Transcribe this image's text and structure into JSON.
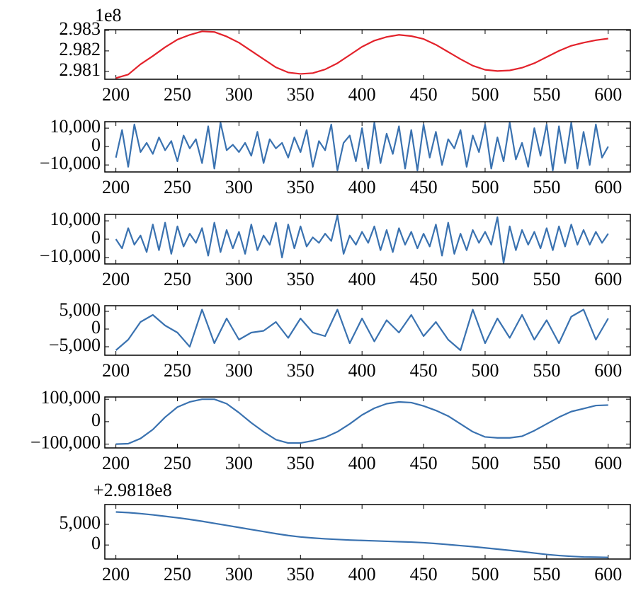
{
  "chart_data": [
    {
      "type": "line",
      "annotation": "1e8",
      "xlim": [
        191,
        618
      ],
      "xticks": [
        200,
        250,
        300,
        350,
        400,
        450,
        500,
        550,
        600
      ],
      "ylim": [
        2.98062,
        2.98303
      ],
      "yticks": [
        2.981,
        2.982,
        2.983
      ],
      "x": [
        200,
        210,
        220,
        230,
        240,
        250,
        260,
        270,
        280,
        290,
        300,
        310,
        320,
        330,
        340,
        350,
        360,
        370,
        380,
        390,
        400,
        410,
        420,
        430,
        440,
        450,
        460,
        470,
        480,
        490,
        500,
        510,
        520,
        530,
        540,
        550,
        560,
        570,
        580,
        590,
        600
      ],
      "series": [
        {
          "color": "#e3222b",
          "values": [
            2.98068,
            2.98085,
            2.98135,
            2.98175,
            2.98218,
            2.98255,
            2.98278,
            2.98295,
            2.98292,
            2.9827,
            2.9824,
            2.982,
            2.9816,
            2.9812,
            2.98095,
            2.98088,
            2.98092,
            2.9811,
            2.9814,
            2.9818,
            2.9822,
            2.9825,
            2.98268,
            2.98278,
            2.98272,
            2.98258,
            2.9823,
            2.98195,
            2.9816,
            2.98128,
            2.98108,
            2.98102,
            2.98105,
            2.98118,
            2.9814,
            2.9817,
            2.982,
            2.98225,
            2.9824,
            2.98252,
            2.9826
          ]
        }
      ]
    },
    {
      "type": "line",
      "xlim": [
        191,
        618
      ],
      "xticks": [
        200,
        250,
        300,
        350,
        400,
        450,
        500,
        550,
        600
      ],
      "ylim": [
        -13800,
        13500
      ],
      "yticks": [
        {
          "value": 10000,
          "label": "10,000"
        },
        0,
        {
          "value": -10000,
          "label": "−10,000"
        }
      ],
      "x": [
        200,
        205,
        210,
        215,
        220,
        225,
        230,
        235,
        240,
        245,
        250,
        255,
        260,
        265,
        270,
        275,
        280,
        285,
        290,
        295,
        300,
        305,
        310,
        315,
        320,
        325,
        330,
        335,
        340,
        345,
        350,
        355,
        360,
        365,
        370,
        375,
        380,
        385,
        390,
        395,
        400,
        405,
        410,
        415,
        420,
        425,
        430,
        435,
        440,
        445,
        450,
        455,
        460,
        465,
        470,
        475,
        480,
        485,
        490,
        495,
        500,
        505,
        510,
        515,
        520,
        525,
        530,
        535,
        540,
        545,
        550,
        555,
        560,
        565,
        570,
        575,
        580,
        585,
        590,
        595,
        600
      ],
      "series": [
        {
          "color": "#3a72b0",
          "values": [
            -6000,
            9000,
            -11000,
            12000,
            -3000,
            2000,
            -4000,
            5000,
            -2000,
            3000,
            -8000,
            6000,
            -1000,
            4000,
            -9000,
            11000,
            -12000,
            13000,
            -2000,
            1000,
            -3000,
            2000,
            -5000,
            8000,
            -9000,
            4000,
            -1000,
            2000,
            -6000,
            5000,
            -3000,
            9000,
            -11000,
            3000,
            -2000,
            12000,
            -13000,
            2000,
            6000,
            -8000,
            10000,
            -12000,
            13000,
            -9000,
            7000,
            -4000,
            11000,
            -12000,
            9000,
            -13000,
            12000,
            -6000,
            8000,
            -10000,
            4000,
            -1000,
            9000,
            -11000,
            6000,
            -3000,
            12000,
            -12000,
            5000,
            -8000,
            13000,
            -7000,
            2000,
            -11000,
            10000,
            -5000,
            12000,
            -13000,
            11000,
            -9000,
            13000,
            -12000,
            8000,
            -10000,
            12000,
            -6000,
            0
          ]
        }
      ]
    },
    {
      "type": "line",
      "xlim": [
        191,
        618
      ],
      "xticks": [
        200,
        250,
        300,
        350,
        400,
        450,
        500,
        550,
        600
      ],
      "ylim": [
        -13500,
        13500
      ],
      "yticks": [
        {
          "value": 10000,
          "label": "10,000"
        },
        0,
        {
          "value": -10000,
          "label": "−10,000"
        }
      ],
      "x": [
        200,
        205,
        210,
        215,
        220,
        225,
        230,
        235,
        240,
        245,
        250,
        255,
        260,
        265,
        270,
        275,
        280,
        285,
        290,
        295,
        300,
        305,
        310,
        315,
        320,
        325,
        330,
        335,
        340,
        345,
        350,
        355,
        360,
        365,
        370,
        375,
        380,
        385,
        390,
        395,
        400,
        405,
        410,
        415,
        420,
        425,
        430,
        435,
        440,
        445,
        450,
        455,
        460,
        465,
        470,
        475,
        480,
        485,
        490,
        495,
        500,
        505,
        510,
        515,
        520,
        525,
        530,
        535,
        540,
        545,
        550,
        555,
        560,
        565,
        570,
        575,
        580,
        585,
        590,
        595,
        600
      ],
      "series": [
        {
          "color": "#3a72b0",
          "values": [
            0,
            -5000,
            6000,
            -3000,
            2000,
            -7000,
            8000,
            -6000,
            9000,
            -8000,
            7000,
            -4000,
            3000,
            -2000,
            6000,
            -9000,
            9000,
            -7000,
            5000,
            -5000,
            4000,
            -8000,
            8000,
            -6000,
            2000,
            -3000,
            9000,
            -10000,
            8000,
            -5000,
            7000,
            -4000,
            1000,
            -2000,
            3000,
            -1000,
            13000,
            -8000,
            2000,
            -3000,
            4000,
            -2000,
            7000,
            -6000,
            5000,
            -7000,
            6000,
            -3000,
            4000,
            -5000,
            3000,
            -4000,
            8000,
            -9000,
            9000,
            -8000,
            3000,
            -6000,
            5000,
            -2000,
            4000,
            -3000,
            12000,
            -13000,
            7000,
            -6000,
            5000,
            -3000,
            4000,
            -5000,
            6000,
            -6000,
            7000,
            -4000,
            8000,
            -3000,
            5000,
            -3000,
            4000,
            -2000,
            3000
          ]
        }
      ]
    },
    {
      "type": "line",
      "xlim": [
        191,
        618
      ],
      "xticks": [
        200,
        250,
        300,
        350,
        400,
        450,
        500,
        550,
        600
      ],
      "ylim": [
        -7400,
        6600
      ],
      "yticks": [
        {
          "value": 5000,
          "label": "5,000"
        },
        0,
        {
          "value": -5000,
          "label": "−5,000"
        }
      ],
      "x": [
        200,
        210,
        220,
        230,
        240,
        250,
        260,
        270,
        280,
        290,
        300,
        310,
        320,
        330,
        340,
        350,
        360,
        370,
        380,
        390,
        400,
        410,
        420,
        430,
        440,
        450,
        460,
        470,
        480,
        490,
        500,
        510,
        520,
        530,
        540,
        550,
        560,
        570,
        580,
        590,
        600
      ],
      "series": [
        {
          "color": "#3a72b0",
          "values": [
            -6000,
            -3000,
            2000,
            4000,
            1000,
            -1000,
            -5000,
            5500,
            -4000,
            3000,
            -3000,
            -1000,
            -500,
            2000,
            -2500,
            3000,
            -1000,
            -2000,
            5500,
            -4000,
            3000,
            -3500,
            2500,
            -1000,
            4000,
            -2000,
            2000,
            -3000,
            -6000,
            5500,
            -4000,
            3000,
            -2500,
            4000,
            -3000,
            2500,
            -4000,
            3500,
            5500,
            -3000,
            3000
          ]
        }
      ]
    },
    {
      "type": "line",
      "xlim": [
        191,
        618
      ],
      "xticks": [
        200,
        250,
        300,
        350,
        400,
        450,
        500,
        550,
        600
      ],
      "ylim": [
        -117000,
        110000
      ],
      "yticks": [
        {
          "value": 100000,
          "label": "100,000"
        },
        0,
        {
          "value": -100000,
          "label": "−100,000"
        }
      ],
      "x": [
        200,
        210,
        220,
        230,
        240,
        250,
        260,
        270,
        280,
        290,
        300,
        310,
        320,
        330,
        340,
        350,
        360,
        370,
        380,
        390,
        400,
        410,
        420,
        430,
        440,
        450,
        460,
        470,
        480,
        490,
        500,
        510,
        520,
        530,
        540,
        550,
        560,
        570,
        580,
        590,
        600
      ],
      "series": [
        {
          "color": "#3a72b0",
          "values": [
            -100000,
            -98000,
            -75000,
            -35000,
            20000,
            65000,
            88000,
            100000,
            100000,
            80000,
            40000,
            -5000,
            -45000,
            -80000,
            -95000,
            -95000,
            -85000,
            -70000,
            -45000,
            -10000,
            30000,
            60000,
            80000,
            88000,
            85000,
            70000,
            50000,
            25000,
            -10000,
            -45000,
            -68000,
            -72000,
            -72000,
            -65000,
            -40000,
            -10000,
            20000,
            45000,
            58000,
            72000,
            74000
          ]
        }
      ]
    },
    {
      "type": "line",
      "annotation": "+2.9818e8",
      "xlim": [
        191,
        618
      ],
      "xticks": [
        200,
        250,
        300,
        350,
        400,
        450,
        500,
        550,
        600
      ],
      "ylim": [
        -3400,
        9800
      ],
      "yticks": [
        {
          "value": 5000,
          "label": "5,000"
        },
        0
      ],
      "x": [
        200,
        210,
        220,
        230,
        240,
        250,
        260,
        270,
        280,
        290,
        300,
        310,
        320,
        330,
        340,
        350,
        360,
        370,
        380,
        390,
        400,
        410,
        420,
        430,
        440,
        450,
        460,
        470,
        480,
        490,
        500,
        510,
        520,
        530,
        540,
        550,
        560,
        570,
        580,
        590,
        600
      ],
      "series": [
        {
          "color": "#3a72b0",
          "values": [
            8000,
            7850,
            7600,
            7300,
            6950,
            6600,
            6200,
            5750,
            5250,
            4750,
            4250,
            3750,
            3250,
            2750,
            2300,
            1950,
            1700,
            1500,
            1350,
            1200,
            1100,
            1000,
            900,
            800,
            700,
            550,
            350,
            100,
            -150,
            -400,
            -700,
            -1000,
            -1300,
            -1600,
            -1950,
            -2300,
            -2550,
            -2750,
            -2900,
            -2950,
            -3000
          ]
        }
      ]
    }
  ]
}
